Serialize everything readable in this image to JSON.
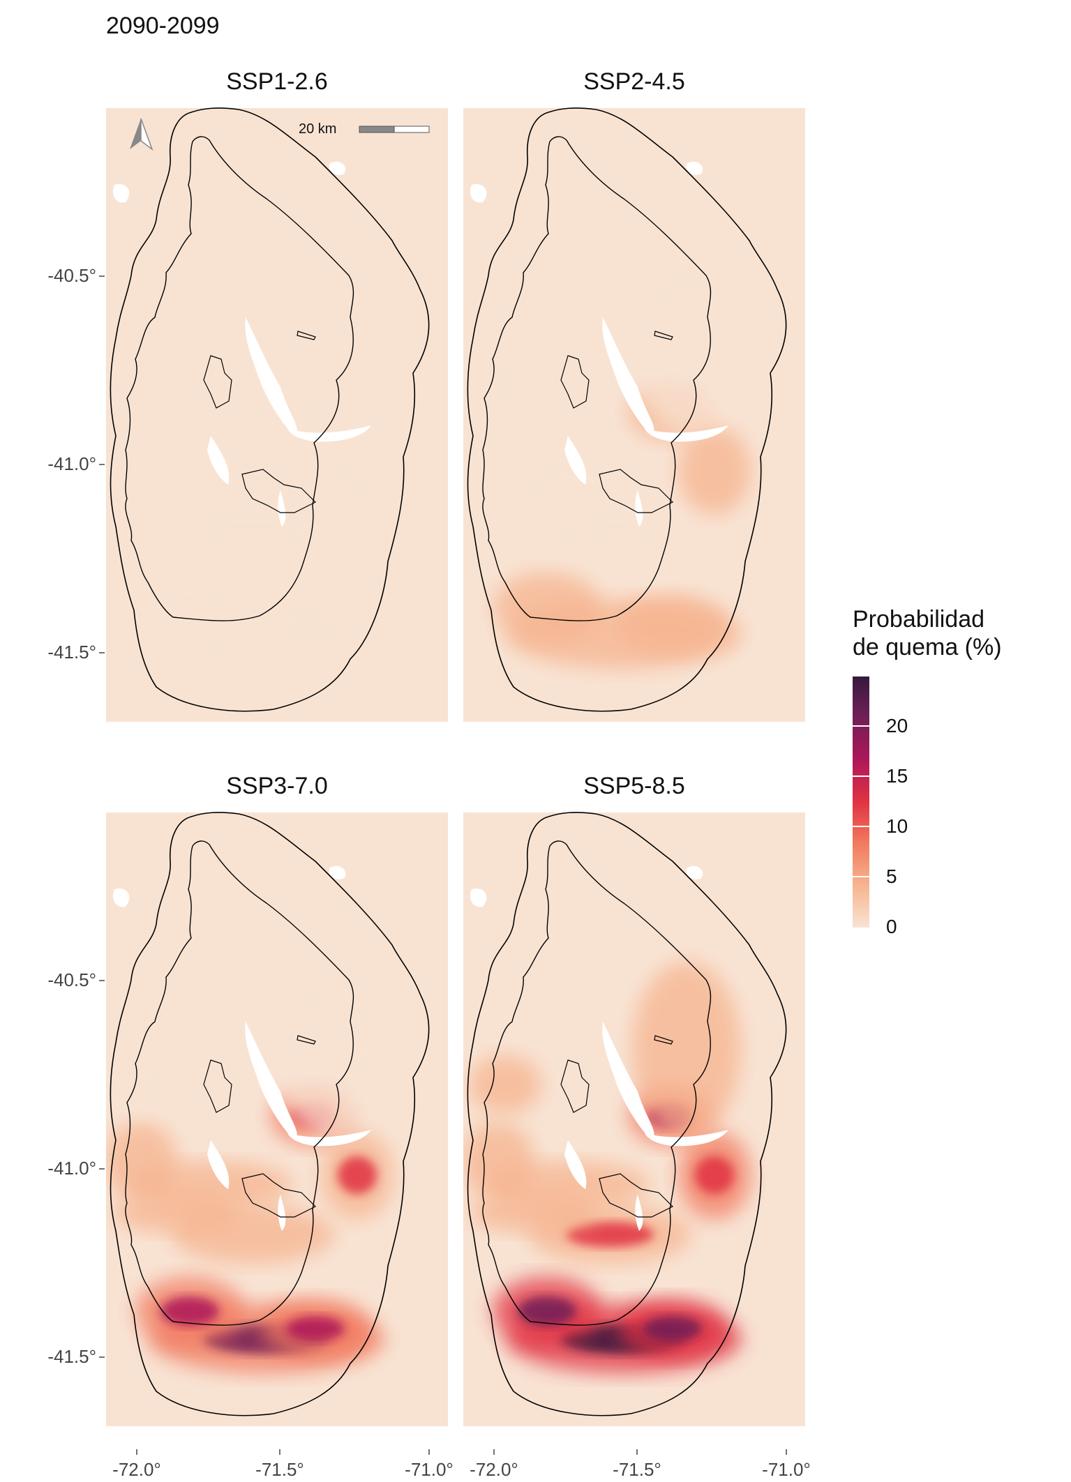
{
  "figure": {
    "title": "2090-2099",
    "panels": [
      {
        "id": "ssp126",
        "title": "SSP1-2.6",
        "intensity": 0.12
      },
      {
        "id": "ssp245",
        "title": "SSP2-4.5",
        "intensity": 0.3
      },
      {
        "id": "ssp370",
        "title": "SSP3-7.0",
        "intensity": 0.75
      },
      {
        "id": "ssp585",
        "title": "SSP5-8.5",
        "intensity": 0.95
      }
    ],
    "y_axis_ticks": [
      "-40.5°",
      "-41.0°",
      "-41.5°"
    ],
    "x_axis_ticks": [
      "-72.0°",
      "-71.5°",
      "-71.0°"
    ],
    "scale_bar_label": "20 km",
    "north_arrow": "north-arrow-icon",
    "legend": {
      "title_line1": "Probabilidad",
      "title_line2": "de quema (%)",
      "ticks": [
        "20",
        "15",
        "10",
        "5",
        "0"
      ],
      "range": [
        0,
        25
      ],
      "colors": [
        "#f8e3d3",
        "#f6b48f",
        "#f1795e",
        "#e13342",
        "#ad1759",
        "#701f57",
        "#36193e"
      ]
    },
    "colors": {
      "background": "#f8e3d3",
      "outline": "#000000"
    }
  }
}
